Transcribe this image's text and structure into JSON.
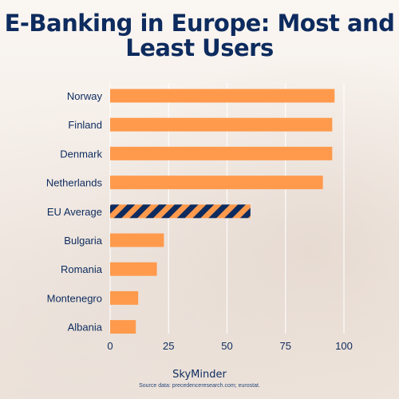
{
  "title": "E-Banking in Europe: Most and Least Users",
  "brand": "SkyMinder",
  "source": "Source data: precedenceresearch.com; eurostat.",
  "colors": {
    "bar": "#ff9a4d",
    "highlight_stripe_a": "#0d2b5e",
    "highlight_stripe_b": "#ff9a4d",
    "text": "#0d2b5e",
    "grid": "#ffffff"
  },
  "chart_data": {
    "type": "bar",
    "orientation": "horizontal",
    "categories": [
      "Norway",
      "Finland",
      "Denmark",
      "Netherlands",
      "EU Average",
      "Bulgaria",
      "Romania",
      "Montenegro",
      "Albania"
    ],
    "values": [
      96,
      95,
      95,
      91,
      60,
      23,
      20,
      12,
      11
    ],
    "highlight": "EU Average",
    "xlim": [
      0,
      100
    ],
    "xticks": [
      0,
      25,
      50,
      75,
      100
    ],
    "grid": true
  }
}
